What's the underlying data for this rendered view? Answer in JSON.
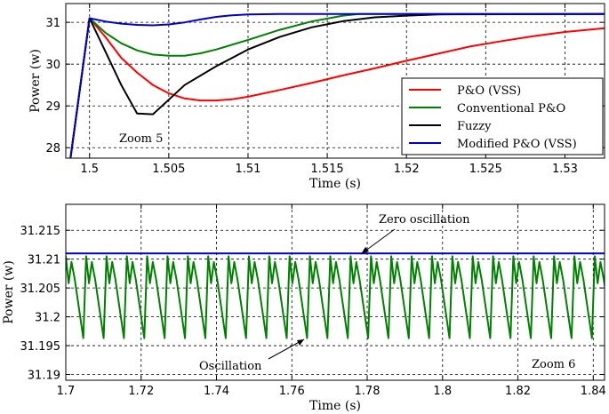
{
  "chart_data": [
    {
      "type": "line",
      "xlabel": "Time (s)",
      "ylabel": "Power (w)",
      "xlim": [
        1.4985,
        1.5325
      ],
      "ylim": [
        27.75,
        31.45
      ],
      "xticks": [
        "1.5",
        "1.505",
        "1.51",
        "1.515",
        "1.52",
        "1.525",
        "1.53"
      ],
      "xtick_values": [
        1.5,
        1.505,
        1.51,
        1.515,
        1.52,
        1.525,
        1.53
      ],
      "yticks": [
        "28",
        "29",
        "30",
        "31"
      ],
      "ytick_values": [
        28,
        29,
        30,
        31
      ],
      "grid": true,
      "legend_position": "bottom-right",
      "annotation": "Zoom 5",
      "series": [
        {
          "name": "P&O (VSS)",
          "color": "#ff0000",
          "x": [
            1.4988,
            1.5,
            1.501,
            1.502,
            1.503,
            1.504,
            1.505,
            1.506,
            1.507,
            1.508,
            1.509,
            1.51,
            1.512,
            1.514,
            1.516,
            1.518,
            1.52,
            1.522,
            1.524,
            1.526,
            1.528,
            1.53,
            1.5325
          ],
          "y": [
            27.75,
            31.1,
            30.65,
            30.15,
            29.8,
            29.5,
            29.3,
            29.18,
            29.13,
            29.13,
            29.16,
            29.22,
            29.38,
            29.55,
            29.73,
            29.9,
            30.08,
            30.25,
            30.42,
            30.55,
            30.67,
            30.77,
            30.86
          ]
        },
        {
          "name": "Conventional P&O",
          "color": "#008000",
          "x": [
            1.4988,
            1.5,
            1.501,
            1.502,
            1.503,
            1.504,
            1.505,
            1.506,
            1.507,
            1.508,
            1.51,
            1.512,
            1.514,
            1.516,
            1.517,
            1.518,
            1.52,
            1.5325
          ],
          "y": [
            27.75,
            31.1,
            30.75,
            30.5,
            30.33,
            30.23,
            30.2,
            30.2,
            30.26,
            30.35,
            30.58,
            30.82,
            31.02,
            31.16,
            31.2,
            31.2,
            31.2,
            31.2
          ]
        },
        {
          "name": "Fuzzy",
          "color": "#000000",
          "x": [
            1.4988,
            1.5,
            1.501,
            1.502,
            1.503,
            1.504,
            1.505,
            1.506,
            1.508,
            1.51,
            1.512,
            1.514,
            1.516,
            1.518,
            1.52,
            1.522,
            1.5325
          ],
          "y": [
            27.75,
            31.1,
            30.3,
            29.5,
            28.82,
            28.8,
            29.15,
            29.5,
            29.95,
            30.35,
            30.65,
            30.88,
            31.03,
            31.12,
            31.16,
            31.19,
            31.2
          ]
        },
        {
          "name": "Modified P&O (VSS)",
          "color": "#0000cc",
          "x": [
            1.4988,
            1.5,
            1.501,
            1.502,
            1.503,
            1.504,
            1.505,
            1.506,
            1.507,
            1.508,
            1.509,
            1.51,
            1.512,
            1.5325
          ],
          "y": [
            27.75,
            31.1,
            31.02,
            30.97,
            30.94,
            30.93,
            30.95,
            31.0,
            31.07,
            31.13,
            31.17,
            31.19,
            31.2,
            31.2
          ]
        }
      ]
    },
    {
      "type": "line",
      "xlabel": "Time (s)",
      "ylabel": "Power (w)",
      "xlim": [
        1.7,
        1.843
      ],
      "ylim": [
        31.189,
        31.2195
      ],
      "xticks": [
        "1.7",
        "1.72",
        "1.74",
        "1.76",
        "1.78",
        "1.8",
        "1.82",
        "1.84"
      ],
      "xtick_values": [
        1.7,
        1.72,
        1.74,
        1.76,
        1.78,
        1.8,
        1.82,
        1.84
      ],
      "yticks": [
        "31.19",
        "31.195",
        "31.2",
        "31.205",
        "31.21",
        "31.215"
      ],
      "ytick_values": [
        31.19,
        31.195,
        31.2,
        31.205,
        31.21,
        31.215
      ],
      "grid": true,
      "annotations": [
        "Zero oscillation",
        "Oscillation",
        "Zoom 6"
      ],
      "series": [
        {
          "name": "Modified P&O (VSS)",
          "color": "#0000cc",
          "x": [
            1.7,
            1.843
          ],
          "y": [
            31.211,
            31.211
          ]
        },
        {
          "name": "Conventional P&O",
          "color": "#008000",
          "pattern": {
            "period": 0.0054,
            "y_values": [
              31.2105,
              31.2058,
              31.2095,
              31.2065,
              31.1963,
              31.2105
            ],
            "phases": [
              0,
              0.14,
              0.28,
              0.44,
              0.86,
              1
            ]
          }
        }
      ]
    }
  ]
}
